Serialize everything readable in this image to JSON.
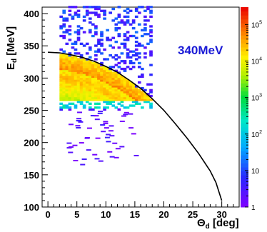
{
  "chart_data": {
    "type": "heatmap",
    "title": "",
    "annotation": "340MeV",
    "annotation_color": "#1a1ad6",
    "xlabel": {
      "main": "Θ",
      "sub": "d",
      "unit": " [deg]"
    },
    "ylabel": {
      "main": "E",
      "sub": "d",
      "unit": " [MeV]"
    },
    "xlim": [
      -1,
      33
    ],
    "ylim": [
      100,
      410
    ],
    "x_ticks": [
      0,
      5,
      10,
      15,
      20,
      25,
      30
    ],
    "x_tick_labels": [
      "0",
      "5",
      "10",
      "15",
      "20",
      "25",
      "30"
    ],
    "y_ticks": [
      100,
      150,
      200,
      250,
      300,
      350,
      400
    ],
    "y_tick_labels": [
      "100",
      "150",
      "200",
      "250",
      "300",
      "350",
      "400"
    ],
    "z_scale": "log",
    "zlim": [
      1,
      300000
    ],
    "z_ticks": [
      1,
      10,
      100,
      1000,
      10000,
      100000
    ],
    "z_tick_labels": [
      {
        "base": "1",
        "exp": ""
      },
      {
        "base": "10",
        "exp": ""
      },
      {
        "base": "10",
        "exp": "2"
      },
      {
        "base": "10",
        "exp": "3"
      },
      {
        "base": "10",
        "exp": "4"
      },
      {
        "base": "10",
        "exp": "5"
      }
    ],
    "heatmap_region": {
      "x_range": [
        2,
        18
      ],
      "y_range": [
        250,
        410
      ],
      "peak_counts": 100000
    },
    "kinematic_curve": {
      "color": "#000000",
      "points": [
        [
          0,
          340
        ],
        [
          2,
          339
        ],
        [
          4,
          336
        ],
        [
          6,
          332
        ],
        [
          8,
          326
        ],
        [
          10,
          318
        ],
        [
          12,
          309
        ],
        [
          14,
          297
        ],
        [
          16,
          284
        ],
        [
          18,
          268
        ],
        [
          20,
          250
        ],
        [
          22,
          229
        ],
        [
          24,
          207
        ],
        [
          26,
          183
        ],
        [
          28,
          156
        ],
        [
          29,
          138
        ],
        [
          30,
          110
        ]
      ]
    }
  }
}
